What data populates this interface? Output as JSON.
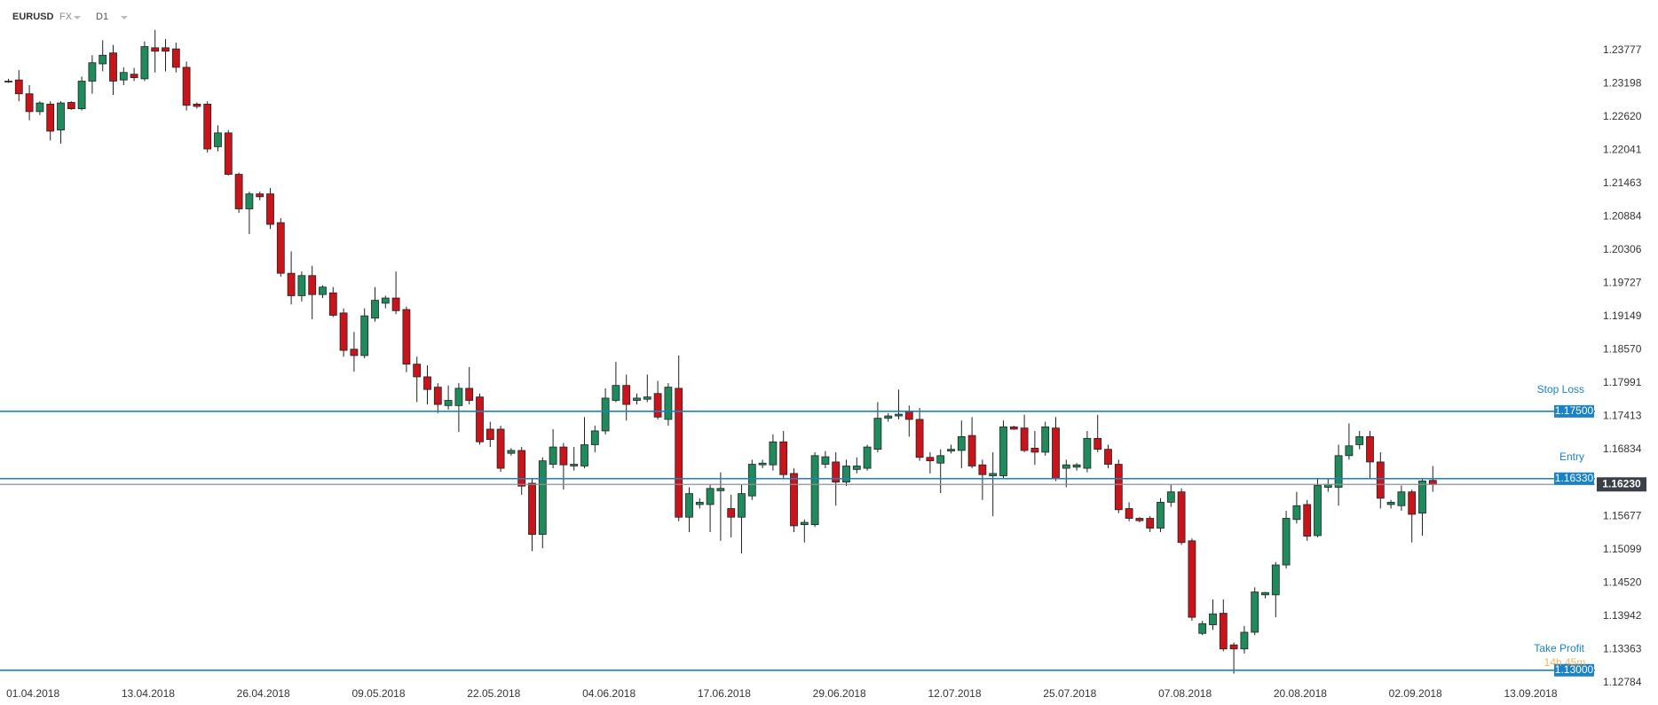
{
  "header": {
    "symbol": "EURUSD",
    "market": "FX",
    "timeframe": "D1"
  },
  "chart_data": {
    "type": "candlestick",
    "categories": [
      null,
      null,
      "01.04.2018",
      null,
      null,
      null,
      null,
      null,
      null,
      null,
      null,
      null,
      null,
      "13.04.2018",
      null,
      null,
      null,
      null,
      null,
      null,
      null,
      null,
      null,
      null,
      "26.04.2018",
      null,
      null,
      null,
      null,
      null,
      null,
      null,
      null,
      null,
      null,
      "09.05.2018",
      null,
      null,
      null,
      null,
      null,
      null,
      null,
      null,
      null,
      null,
      "22.05.2018",
      null,
      null,
      null,
      null,
      null,
      null,
      null,
      null,
      null,
      null,
      "04.06.2018",
      null,
      null,
      null,
      null,
      null,
      null,
      null,
      null,
      null,
      null,
      "17.06.2018",
      null,
      null,
      null,
      null,
      null,
      null,
      null,
      null,
      null,
      null,
      "29.06.2018",
      null,
      null,
      null,
      null,
      null,
      null,
      null,
      null,
      null,
      null,
      "12.07.2018",
      null,
      null,
      null,
      null,
      null,
      null,
      null,
      null,
      null,
      null,
      "25.07.2018",
      null,
      null,
      null,
      null,
      null,
      null,
      null,
      null,
      null,
      null,
      "07.08.2018",
      null,
      null,
      null,
      null,
      null,
      null,
      null,
      null,
      null,
      null,
      "20.08.2018",
      null,
      null,
      null,
      null,
      null,
      null,
      null,
      null,
      null,
      null,
      "02.09.2018",
      null,
      null,
      null,
      null,
      null,
      null,
      null,
      null,
      null,
      null,
      "13.09.2018"
    ],
    "open": [
      1.2323,
      1.2326,
      1.2302,
      1.2271,
      1.2284,
      1.2239,
      1.2287,
      1.2276,
      1.2324,
      1.2354,
      1.2373,
      1.2326,
      1.2336,
      1.2328,
      1.2382,
      1.2382,
      1.238,
      1.2348,
      1.2284,
      1.2284,
      1.221,
      1.2234,
      1.2162,
      1.2102,
      1.2128,
      1.2128,
      1.2078,
      1.199,
      1.1951,
      1.1986,
      1.1953,
      1.1956,
      1.1921,
      1.1858,
      1.1847,
      1.1912,
      1.1938,
      1.1947,
      1.1927,
      1.1832,
      1.181,
      1.1792,
      1.176,
      1.176,
      1.179,
      1.1775,
      1.1719,
      1.1719,
      1.1677,
      1.1682,
      1.1625,
      1.1536,
      1.1658,
      1.1688,
      1.1655,
      1.1655,
      1.1692,
      1.1716,
      1.1769,
      1.1795,
      1.1769,
      1.1771,
      1.1781,
      1.1736,
      1.179,
      1.1566,
      1.1588,
      1.1588,
      1.1612,
      1.1581,
      1.1566,
      1.1603,
      1.1657,
      1.1657,
      1.1697,
      1.1642,
      1.1553,
      1.1553,
      1.1658,
      1.1662,
      1.1627,
      1.1649,
      1.1651,
      1.1684,
      1.1738,
      1.1742,
      1.1749,
      1.1736,
      1.167,
      1.166,
      1.1681,
      1.1682,
      1.1708,
      1.1657,
      1.1638,
      1.1638,
      1.1723,
      1.1721,
      1.1686,
      1.1679,
      1.1721,
      1.1651,
      1.1653,
      1.1651,
      1.1703,
      1.1684,
      1.1658,
      1.1581,
      1.1564,
      1.1564,
      1.1547,
      1.1592,
      1.161,
      1.1525,
      1.1364,
      1.1379,
      1.1399,
      1.1344,
      1.1337,
      1.1366,
      1.1431,
      1.1431,
      1.1483,
      1.1562,
      1.1588,
      1.1534,
      1.1618,
      1.1618,
      1.1673,
      1.1692,
      1.1706,
      1.1662,
      1.1588,
      1.1586,
      1.161,
      1.1573,
      1.163,
      null,
      null,
      null,
      null,
      null,
      null,
      null,
      null,
      null
    ],
    "high": [
      1.2328,
      1.2343,
      1.2317,
      1.2289,
      1.2289,
      1.2289,
      1.2289,
      1.2332,
      1.2369,
      1.2395,
      1.2387,
      1.2348,
      1.2347,
      1.2393,
      1.2413,
      1.2397,
      1.2391,
      1.2358,
      1.2287,
      1.2289,
      1.2247,
      1.2239,
      1.2165,
      1.2132,
      1.2132,
      1.2138,
      1.2086,
      1.2028,
      1.1993,
      1.2003,
      1.1969,
      1.1966,
      1.1929,
      1.1888,
      1.1929,
      1.1966,
      1.1951,
      1.1993,
      1.1932,
      1.1845,
      1.183,
      1.1799,
      1.1795,
      1.1799,
      1.1827,
      1.1781,
      1.1732,
      1.1725,
      1.1686,
      1.1688,
      1.1633,
      1.167,
      1.1719,
      1.1695,
      1.1688,
      1.174,
      1.1725,
      1.179,
      1.1836,
      1.1814,
      1.1781,
      1.1814,
      1.1803,
      1.1799,
      1.1847,
      1.1618,
      1.1599,
      1.1623,
      1.1644,
      1.1605,
      1.1623,
      1.1666,
      1.1666,
      1.171,
      1.1716,
      1.1651,
      1.1562,
      1.1679,
      1.1681,
      1.1679,
      1.1666,
      1.167,
      1.1692,
      1.1766,
      1.1747,
      1.1788,
      1.176,
      1.1756,
      1.1679,
      1.1684,
      1.1692,
      1.1734,
      1.174,
      1.1666,
      1.1679,
      1.1734,
      1.1725,
      1.1744,
      1.1716,
      1.1732,
      1.174,
      1.1666,
      1.166,
      1.1716,
      1.1744,
      1.1692,
      1.1666,
      1.1592,
      1.1566,
      1.1568,
      1.1599,
      1.1623,
      1.1616,
      1.1529,
      1.1386,
      1.1423,
      1.1423,
      1.1348,
      1.1377,
      1.1444,
      1.1436,
      1.1488,
      1.1577,
      1.161,
      1.1596,
      1.1633,
      1.1633,
      1.1692,
      1.1729,
      1.1716,
      1.1716,
      1.1679,
      1.1596,
      1.1621,
      1.1614,
      1.1633,
      1.1655,
      null,
      null,
      null,
      null,
      null,
      null,
      null,
      null,
      null
    ],
    "low": [
      1.2321,
      1.2289,
      1.2256,
      1.2265,
      1.2221,
      1.2215,
      1.2274,
      1.2273,
      1.2302,
      1.2341,
      1.23,
      1.2317,
      1.2324,
      1.2324,
      1.2339,
      1.2341,
      1.2339,
      1.2273,
      1.2276,
      1.22,
      1.2202,
      1.216,
      1.2095,
      1.2058,
      1.2117,
      1.2067,
      1.1984,
      1.1936,
      1.1941,
      1.191,
      1.1947,
      1.1914,
      1.1845,
      1.1819,
      1.1842,
      1.1906,
      1.1929,
      1.1919,
      1.1818,
      1.1766,
      1.1762,
      1.1747,
      1.1753,
      1.1714,
      1.1762,
      1.1692,
      1.1688,
      1.1645,
      1.1673,
      1.1605,
      1.1507,
      1.1512,
      1.1651,
      1.1614,
      1.1647,
      1.1651,
      1.1679,
      1.171,
      1.1766,
      1.1734,
      1.1762,
      1.1766,
      1.1736,
      1.1725,
      1.1559,
      1.154,
      1.1581,
      1.154,
      1.1525,
      1.1531,
      1.1503,
      1.1596,
      1.1651,
      1.1647,
      1.1633,
      1.154,
      1.1522,
      1.1549,
      1.1651,
      1.1586,
      1.162,
      1.1642,
      1.1647,
      1.1679,
      1.1732,
      1.1736,
      1.1706,
      1.1664,
      1.1642,
      1.1608,
      1.1677,
      1.1651,
      1.1651,
      1.1596,
      1.1568,
      1.1633,
      1.1718,
      1.1679,
      1.1657,
      1.1673,
      1.1629,
      1.1618,
      1.1647,
      1.1644,
      1.1679,
      1.1651,
      1.1573,
      1.1559,
      1.1557,
      1.154,
      1.154,
      1.1584,
      1.1518,
      1.1386,
      1.1361,
      1.137,
      1.1333,
      1.1294,
      1.1329,
      1.1361,
      1.1425,
      1.1392,
      1.1477,
      1.1555,
      1.1525,
      1.1531,
      1.161,
      1.1586,
      1.1666,
      1.1684,
      1.1633,
      1.1581,
      1.1581,
      1.1577,
      1.1522,
      1.1534,
      1.161,
      null,
      null,
      null,
      null,
      null,
      null,
      null,
      null,
      null
    ],
    "close": [
      1.2324,
      1.2302,
      1.2271,
      1.2286,
      1.2237,
      1.2286,
      1.2276,
      1.2324,
      1.2356,
      1.2369,
      1.2324,
      1.2339,
      1.233,
      1.2384,
      1.2376,
      1.2376,
      1.2348,
      1.2282,
      1.228,
      1.2206,
      1.2234,
      1.2162,
      1.2102,
      1.2128,
      1.2123,
      1.2075,
      1.199,
      1.1951,
      1.1986,
      1.1953,
      1.1966,
      1.1917,
      1.1856,
      1.1847,
      1.1916,
      1.1943,
      1.1947,
      1.1925,
      1.1832,
      1.181,
      1.1788,
      1.1762,
      1.1769,
      1.179,
      1.1769,
      1.1697,
      1.1701,
      1.1651,
      1.1682,
      1.162,
      1.1536,
      1.1664,
      1.1688,
      1.1657,
      1.1658,
      1.1692,
      1.1716,
      1.1773,
      1.1795,
      1.1762,
      1.1773,
      1.1775,
      1.174,
      1.1792,
      1.1566,
      1.1607,
      1.1592,
      1.1616,
      1.1616,
      1.1566,
      1.1607,
      1.1658,
      1.166,
      1.1697,
      1.164,
      1.1551,
      1.1557,
      1.1673,
      1.1671,
      1.1627,
      1.1655,
      1.1655,
      1.1688,
      1.1738,
      1.1742,
      1.1745,
      1.1736,
      1.167,
      1.1664,
      1.1673,
      1.1684,
      1.1706,
      1.1655,
      1.164,
      1.1642,
      1.1723,
      1.1719,
      1.1682,
      1.1679,
      1.1723,
      1.1633,
      1.1657,
      1.1657,
      1.1703,
      1.1684,
      1.1658,
      1.1579,
      1.1564,
      1.156,
      1.1547,
      1.1592,
      1.161,
      1.1522,
      1.1392,
      1.1381,
      1.1398,
      1.1337,
      1.1337,
      1.1366,
      1.1436,
      1.1435,
      1.1483,
      1.1564,
      1.1586,
      1.1533,
      1.1621,
      1.1623,
      1.1673,
      1.169,
      1.1706,
      1.1662,
      1.1599,
      1.1592,
      1.161,
      1.1571,
      1.1629,
      1.1623,
      null,
      null,
      null,
      null,
      null,
      null,
      null,
      null,
      null
    ],
    "up_color": "#1f8a5b",
    "down_color": "#c8141a",
    "ylim": [
      1.1275,
      1.2465
    ],
    "yticks": [
      1.23777,
      1.23198,
      {
        "value": 1.2262,
        "label": "1.22620"
      },
      1.22041,
      1.21463,
      1.20884,
      1.20306,
      1.19727,
      1.19149,
      {
        "value": 1.1857,
        "label": "1.18570"
      },
      1.17991,
      1.17413,
      1.16834,
      1.15677,
      1.15099,
      {
        "value": 1.1452,
        "label": "1.14520"
      },
      1.13942,
      1.13363,
      1.12784
    ],
    "lines": [
      {
        "name": "Stop Loss",
        "value": 1.175,
        "value_label": "1.17500",
        "color": "#1a82c6"
      },
      {
        "name": "Entry",
        "value": 1.1633,
        "value_label": "1.16330",
        "color": "#1a82c6"
      },
      {
        "name": "Take Profit",
        "value": 1.13,
        "value_label": "1.13000",
        "color": "#1a82c6"
      }
    ],
    "last_price": {
      "value": 1.1623,
      "value_label": "1.16230",
      "color": "#3b4048"
    },
    "countdown": "14h 45m"
  }
}
